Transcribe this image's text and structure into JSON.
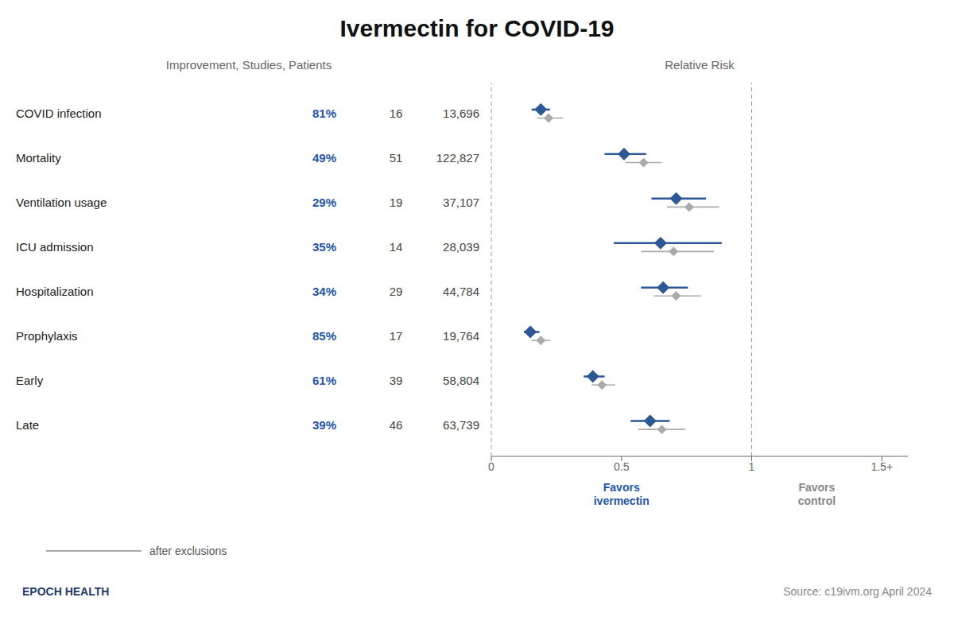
{
  "chart_data": {
    "type": "forest",
    "title": "Ivermectin for COVID-19",
    "subtitle": "Improvement, Studies, Patients",
    "xlabel": "Relative Risk",
    "categories": [
      "COVID infection",
      "Mortality",
      "Ventilation usage",
      "ICU admission",
      "Hospitalization",
      "Prophylaxis",
      "Early",
      "Late"
    ],
    "columns": [
      {
        "values": [
          "81%",
          "49%",
          "29%",
          "35%",
          "34%",
          "85%",
          "61%",
          "39%"
        ],
        "color": "#2255aa"
      },
      {
        "values": [
          "16",
          "51",
          "19",
          "14",
          "29",
          "17",
          "39",
          "46"
        ]
      },
      {
        "values": [
          "13,696",
          "122,827",
          "37,107",
          "28,039",
          "44,784",
          "19,764",
          "58,804",
          "63,739"
        ]
      }
    ],
    "series": [
      {
        "color": "#2d5896",
        "marker": "diamond",
        "values": [
          0.19,
          0.51,
          0.71,
          0.65,
          0.66,
          0.15,
          0.39,
          0.61
        ],
        "ci_low": [
          0.155,
          0.435,
          0.615,
          0.47,
          0.575,
          0.125,
          0.355,
          0.535
        ],
        "ci_high": [
          0.225,
          0.595,
          0.825,
          0.885,
          0.755,
          0.185,
          0.435,
          0.685
        ]
      },
      {
        "name": "after exclusions",
        "color": "#aaaaaa",
        "marker": "diamond",
        "values": [
          0.22,
          0.585,
          0.76,
          0.7,
          0.71,
          0.19,
          0.425,
          0.655
        ],
        "ci_low": [
          0.175,
          0.515,
          0.675,
          0.575,
          0.625,
          0.155,
          0.385,
          0.565
        ],
        "ci_high": [
          0.275,
          0.655,
          0.875,
          0.855,
          0.805,
          0.225,
          0.475,
          0.745
        ]
      }
    ],
    "xlim": [
      0,
      1.6
    ],
    "xticks": [
      0,
      0.5,
      1,
      {
        "value": 1.5,
        "label": "1.5+"
      }
    ],
    "reference_lines": [
      0,
      1
    ],
    "annotations": [
      {
        "text": "Favors\nivermectin",
        "x": 0.5,
        "color": "#2255aa"
      },
      {
        "text": "Favors\ncontrol",
        "x": 1.25,
        "color": "#888888"
      }
    ],
    "footer": [
      {
        "text": "EPOCH HEALTH",
        "color": "#1e3a6e"
      },
      {
        "text": "Source: c19ivm.org April 2024",
        "color": "#888888"
      }
    ],
    "grid": false,
    "legend": "lower left"
  }
}
